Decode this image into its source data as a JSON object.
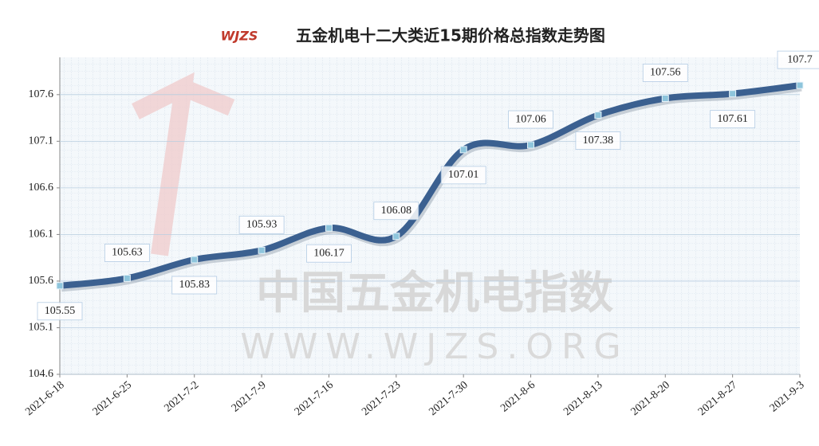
{
  "chart_data": {
    "type": "line",
    "title": "五金机电十二大类近15期价格总指数走势图",
    "logo": "WJZS",
    "watermark": [
      "中国五金机电指数",
      "WWW.WJZS.ORG"
    ],
    "categories": [
      "2021-6-18",
      "2021-6-25",
      "2021-7-2",
      "2021-7-9",
      "2021-7-16",
      "2021-7-23",
      "2021-7-30",
      "2021-8-6",
      "2021-8-13",
      "2021-8-20",
      "2021-8-27",
      "2021-9-3"
    ],
    "series": [
      {
        "name": "价格总指数",
        "color": "#3b6090",
        "values": [
          105.55,
          105.63,
          105.83,
          105.93,
          106.17,
          106.08,
          107.01,
          107.06,
          107.38,
          107.56,
          107.61,
          107.7
        ]
      }
    ],
    "ylim": [
      104.6,
      108.0
    ],
    "yticks": [
      104.6,
      105.1,
      105.6,
      106.1,
      106.6,
      107.1,
      107.6
    ],
    "grid": true
  }
}
